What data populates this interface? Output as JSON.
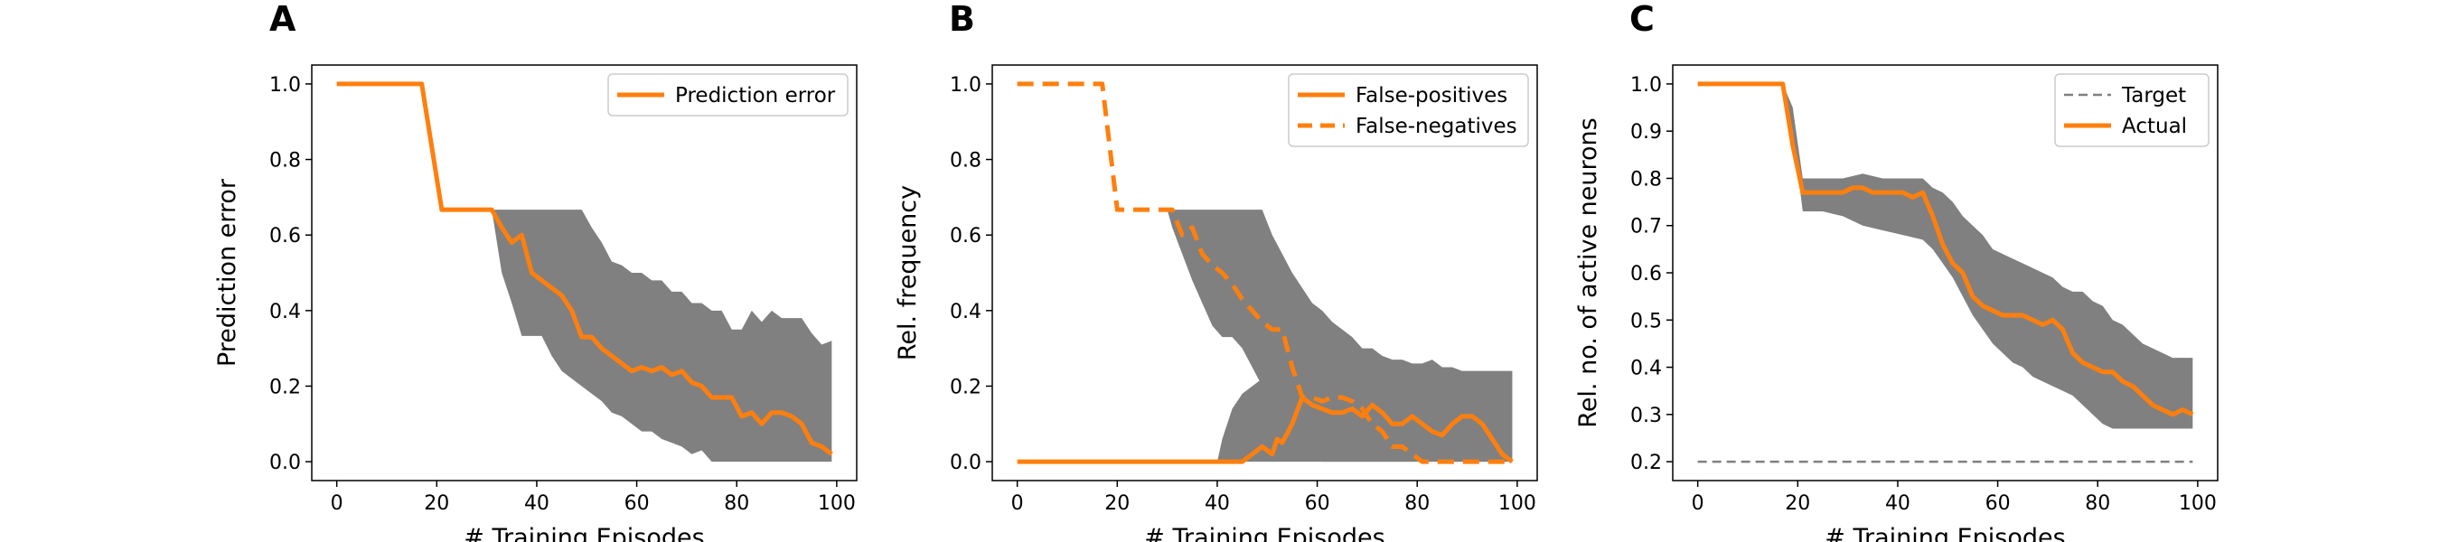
{
  "colors": {
    "accent": "#ff7f0e",
    "band": "#808080",
    "target": "#808080"
  },
  "chart_data": [
    {
      "type": "line",
      "panel": "A",
      "xlabel": "# Training Episodes",
      "ylabel": "Prediction error",
      "xlim": [
        -5,
        104
      ],
      "ylim": [
        -0.05,
        1.05
      ],
      "xticks": [
        0,
        20,
        40,
        60,
        80,
        100
      ],
      "xtick_labels": [
        "0",
        "20",
        "40",
        "60",
        "80",
        "100"
      ],
      "yticks": [
        0.0,
        0.2,
        0.4,
        0.6,
        0.8,
        1.0
      ],
      "ytick_labels": [
        "0.0",
        "0.2",
        "0.4",
        "0.6",
        "0.8",
        "1.0"
      ],
      "legend_position": "top-right",
      "band": {
        "x": [
          0,
          17,
          21,
          30,
          31,
          33,
          35,
          37,
          39,
          41,
          43,
          45,
          47,
          49,
          51,
          53,
          55,
          57,
          59,
          61,
          63,
          65,
          67,
          69,
          71,
          73,
          75,
          77,
          79,
          81,
          83,
          85,
          87,
          89,
          91,
          93,
          95,
          97,
          99
        ],
        "upper": [
          1.0,
          1.0,
          0.667,
          0.667,
          0.667,
          0.667,
          0.667,
          0.667,
          0.667,
          0.667,
          0.667,
          0.667,
          0.667,
          0.667,
          0.62,
          0.58,
          0.53,
          0.52,
          0.5,
          0.5,
          0.48,
          0.48,
          0.45,
          0.45,
          0.42,
          0.42,
          0.4,
          0.4,
          0.35,
          0.35,
          0.4,
          0.37,
          0.4,
          0.38,
          0.38,
          0.38,
          0.34,
          0.31,
          0.32
        ],
        "lower": [
          1.0,
          1.0,
          0.667,
          0.667,
          0.667,
          0.5,
          0.42,
          0.333,
          0.333,
          0.333,
          0.28,
          0.24,
          0.22,
          0.2,
          0.18,
          0.16,
          0.13,
          0.12,
          0.1,
          0.08,
          0.08,
          0.06,
          0.05,
          0.04,
          0.02,
          0.03,
          0.0,
          0.0,
          0.0,
          0.0,
          0.0,
          0.0,
          0.0,
          0.0,
          0.0,
          0.0,
          0.0,
          0.0,
          0.0
        ]
      },
      "series": [
        {
          "name": "Prediction error",
          "style": "solid",
          "x": [
            0,
            17,
            21,
            30,
            31,
            33,
            35,
            37,
            39,
            41,
            43,
            45,
            47,
            49,
            51,
            53,
            55,
            57,
            59,
            61,
            63,
            65,
            67,
            69,
            71,
            73,
            75,
            77,
            79,
            81,
            83,
            85,
            87,
            89,
            91,
            93,
            95,
            97,
            99
          ],
          "values": [
            1.0,
            1.0,
            0.667,
            0.667,
            0.667,
            0.62,
            0.58,
            0.6,
            0.5,
            0.48,
            0.46,
            0.44,
            0.4,
            0.33,
            0.33,
            0.3,
            0.28,
            0.26,
            0.24,
            0.25,
            0.24,
            0.25,
            0.23,
            0.24,
            0.21,
            0.2,
            0.17,
            0.17,
            0.17,
            0.12,
            0.13,
            0.1,
            0.13,
            0.13,
            0.12,
            0.1,
            0.05,
            0.04,
            0.02
          ]
        }
      ]
    },
    {
      "type": "line",
      "panel": "B",
      "xlabel": "# Training Episodes",
      "ylabel": "Rel. frequency",
      "xlim": [
        -5,
        104
      ],
      "ylim": [
        -0.05,
        1.05
      ],
      "xticks": [
        0,
        20,
        40,
        60,
        80,
        100
      ],
      "xtick_labels": [
        "0",
        "20",
        "40",
        "60",
        "80",
        "100"
      ],
      "yticks": [
        0.0,
        0.2,
        0.4,
        0.6,
        0.8,
        1.0
      ],
      "ytick_labels": [
        "0.0",
        "0.2",
        "0.4",
        "0.6",
        "0.8",
        "1.0"
      ],
      "legend_position": "top-right",
      "bands": [
        {
          "x": [
            30,
            31,
            33,
            35,
            37,
            39,
            41,
            43,
            45,
            47,
            49,
            51,
            53,
            55,
            57,
            59,
            61,
            63,
            65,
            67,
            69,
            71,
            73,
            75,
            77,
            79,
            81,
            83,
            85,
            87,
            89,
            91,
            93,
            95,
            97,
            99
          ],
          "upper": [
            0.667,
            0.667,
            0.667,
            0.667,
            0.667,
            0.667,
            0.667,
            0.667,
            0.667,
            0.667,
            0.667,
            0.6,
            0.55,
            0.5,
            0.46,
            0.42,
            0.4,
            0.37,
            0.35,
            0.33,
            0.3,
            0.3,
            0.28,
            0.27,
            0.25,
            0.25,
            0.24,
            0.24,
            0.24,
            0.24,
            0.24,
            0.24,
            0.24,
            0.24,
            0.24,
            0.24
          ],
          "lower": [
            0.667,
            0.62,
            0.55,
            0.48,
            0.42,
            0.36,
            0.33,
            0.33,
            0.3,
            0.25,
            0.2,
            0.15,
            0.1,
            0.06,
            0.03,
            0.01,
            0.0,
            0.0,
            0.0,
            0.0,
            0.0,
            0.0,
            0.0,
            0.0,
            0.0,
            0.0,
            0.0,
            0.0,
            0.0,
            0.0,
            0.0,
            0.0,
            0.0,
            0.0,
            0.0,
            0.0
          ]
        },
        {
          "x": [
            40,
            41,
            43,
            45,
            47,
            49,
            51,
            53,
            55,
            57,
            59,
            61,
            63,
            65,
            67,
            69,
            71,
            73,
            75,
            77,
            79,
            81,
            83,
            85,
            87,
            89,
            91,
            93,
            95,
            97,
            99
          ],
          "upper": [
            0.0,
            0.06,
            0.14,
            0.18,
            0.2,
            0.22,
            0.23,
            0.24,
            0.25,
            0.26,
            0.27,
            0.27,
            0.27,
            0.28,
            0.27,
            0.27,
            0.3,
            0.28,
            0.27,
            0.27,
            0.26,
            0.26,
            0.27,
            0.25,
            0.25,
            0.24,
            0.24,
            0.24,
            0.24,
            0.24,
            0.24
          ],
          "lower": [
            0.0,
            0.0,
            0.0,
            0.0,
            0.0,
            0.0,
            0.0,
            0.0,
            0.0,
            0.0,
            0.0,
            0.0,
            0.0,
            0.0,
            0.0,
            0.0,
            0.0,
            0.0,
            0.0,
            0.0,
            0.0,
            0.0,
            0.0,
            0.0,
            0.0,
            0.0,
            0.0,
            0.0,
            0.0,
            0.0,
            0.0
          ]
        }
      ],
      "series": [
        {
          "name": "False-positives",
          "style": "solid",
          "x": [
            0,
            45,
            47,
            49,
            51,
            52,
            53,
            55,
            57,
            59,
            61,
            63,
            65,
            67,
            69,
            71,
            73,
            75,
            77,
            79,
            81,
            83,
            85,
            87,
            89,
            91,
            93,
            95,
            97,
            99
          ],
          "values": [
            0.0,
            0.0,
            0.02,
            0.04,
            0.02,
            0.06,
            0.05,
            0.1,
            0.17,
            0.15,
            0.14,
            0.13,
            0.13,
            0.14,
            0.12,
            0.15,
            0.13,
            0.1,
            0.1,
            0.12,
            0.1,
            0.08,
            0.07,
            0.1,
            0.12,
            0.12,
            0.1,
            0.06,
            0.02,
            0.0
          ]
        },
        {
          "name": "False-negatives",
          "style": "dashed",
          "x": [
            0,
            17,
            20,
            30,
            31,
            33,
            35,
            37,
            39,
            41,
            43,
            45,
            47,
            49,
            51,
            53,
            55,
            57,
            59,
            61,
            63,
            65,
            67,
            69,
            71,
            73,
            75,
            77,
            79,
            81,
            83,
            85,
            87,
            89,
            91,
            93,
            95,
            97,
            99
          ],
          "values": [
            1.0,
            1.0,
            0.667,
            0.667,
            0.667,
            0.6,
            0.62,
            0.55,
            0.52,
            0.5,
            0.47,
            0.43,
            0.4,
            0.37,
            0.35,
            0.35,
            0.25,
            0.17,
            0.17,
            0.16,
            0.17,
            0.17,
            0.16,
            0.14,
            0.1,
            0.08,
            0.04,
            0.04,
            0.02,
            0.0,
            0.0,
            0.0,
            0.0,
            0.0,
            0.0,
            0.0,
            0.0,
            0.0,
            0.0
          ]
        }
      ]
    },
    {
      "type": "line",
      "panel": "C",
      "xlabel": "# Training Episodes",
      "ylabel": "Rel. no. of active neurons",
      "xlim": [
        -5,
        104
      ],
      "ylim": [
        0.16,
        1.04
      ],
      "xticks": [
        0,
        20,
        40,
        60,
        80,
        100
      ],
      "xtick_labels": [
        "0",
        "20",
        "40",
        "60",
        "80",
        "100"
      ],
      "yticks": [
        0.2,
        0.3,
        0.4,
        0.5,
        0.6,
        0.7,
        0.8,
        0.9,
        1.0
      ],
      "ytick_labels": [
        "0.2",
        "0.3",
        "0.4",
        "0.5",
        "0.6",
        "0.7",
        "0.8",
        "0.9",
        "1.0"
      ],
      "legend_position": "top-right",
      "band": {
        "x": [
          0,
          17,
          19,
          21,
          25,
          29,
          33,
          37,
          41,
          45,
          47,
          49,
          51,
          53,
          55,
          57,
          59,
          61,
          63,
          65,
          67,
          69,
          71,
          73,
          75,
          77,
          79,
          81,
          83,
          85,
          87,
          89,
          91,
          93,
          95,
          97,
          99
        ],
        "upper": [
          1.0,
          1.0,
          0.95,
          0.8,
          0.8,
          0.8,
          0.81,
          0.8,
          0.8,
          0.8,
          0.78,
          0.77,
          0.75,
          0.72,
          0.7,
          0.68,
          0.65,
          0.64,
          0.63,
          0.62,
          0.61,
          0.6,
          0.59,
          0.57,
          0.56,
          0.56,
          0.54,
          0.53,
          0.5,
          0.49,
          0.47,
          0.45,
          0.44,
          0.43,
          0.42,
          0.42,
          0.42
        ],
        "lower": [
          1.0,
          1.0,
          0.9,
          0.73,
          0.73,
          0.72,
          0.7,
          0.69,
          0.68,
          0.67,
          0.65,
          0.62,
          0.59,
          0.55,
          0.51,
          0.48,
          0.45,
          0.43,
          0.41,
          0.4,
          0.38,
          0.37,
          0.36,
          0.35,
          0.34,
          0.32,
          0.3,
          0.28,
          0.27,
          0.27,
          0.27,
          0.27,
          0.27,
          0.27,
          0.27,
          0.27,
          0.27
        ]
      },
      "series": [
        {
          "name": "Target",
          "style": "dashed",
          "x": [
            0,
            99
          ],
          "values": [
            0.2,
            0.2
          ]
        },
        {
          "name": "Actual",
          "style": "solid",
          "x": [
            0,
            17,
            19,
            21,
            25,
            29,
            31,
            33,
            35,
            37,
            39,
            41,
            43,
            45,
            47,
            49,
            51,
            53,
            55,
            57,
            59,
            61,
            63,
            65,
            67,
            69,
            71,
            73,
            75,
            77,
            79,
            81,
            83,
            85,
            87,
            89,
            91,
            93,
            95,
            97,
            99
          ],
          "values": [
            1.0,
            1.0,
            0.87,
            0.77,
            0.77,
            0.77,
            0.78,
            0.78,
            0.77,
            0.77,
            0.77,
            0.77,
            0.76,
            0.77,
            0.72,
            0.66,
            0.62,
            0.6,
            0.55,
            0.53,
            0.52,
            0.51,
            0.51,
            0.51,
            0.5,
            0.49,
            0.5,
            0.48,
            0.43,
            0.41,
            0.4,
            0.39,
            0.39,
            0.37,
            0.36,
            0.34,
            0.32,
            0.31,
            0.3,
            0.31,
            0.3
          ]
        }
      ]
    }
  ]
}
